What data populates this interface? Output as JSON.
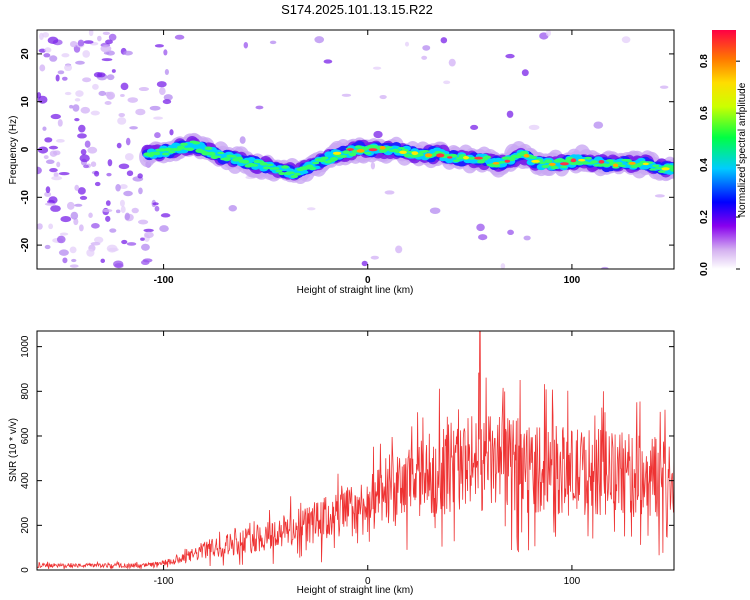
{
  "title": "S174.2025.101.13.15.R22",
  "chart_data": [
    {
      "type": "heatmap",
      "xlabel": "Height of straight line (km)",
      "ylabel": "Frequency (Hz)",
      "xlim": [
        -162,
        150
      ],
      "ylim": [
        -25,
        25
      ],
      "x_ticks": [
        -100,
        0,
        100
      ],
      "y_ticks": [
        -20,
        -10,
        0,
        10,
        20
      ],
      "colorbar": {
        "label": "Normalized spectral amplitude",
        "range": [
          0,
          0.92
        ],
        "ticks": [
          0.0,
          0.2,
          0.4,
          0.6,
          0.8
        ]
      },
      "ridge": {
        "x": [
          -105,
          -95,
          -85,
          -75,
          -65,
          -55,
          -45,
          -35,
          -25,
          -15,
          -5,
          5,
          15,
          25,
          35,
          45,
          55,
          65,
          75,
          85,
          95,
          105,
          115,
          125,
          135,
          145
        ],
        "frequency": [
          -1,
          0,
          1,
          -1,
          -2,
          -3,
          -4,
          -5,
          -3,
          -1,
          0,
          0,
          0,
          -1,
          -1,
          -2,
          -2,
          -3,
          -1,
          -3,
          -3,
          -2,
          -3,
          -3,
          -3,
          -4
        ]
      },
      "grid": false,
      "legend": "none"
    },
    {
      "type": "line",
      "xlabel": "Height of straight line (km)",
      "ylabel": "SNR (10 * v/v)",
      "xlim": [
        -162,
        150
      ],
      "ylim": [
        0,
        1070
      ],
      "x_ticks": [
        -100,
        0,
        100
      ],
      "y_ticks": [
        0,
        200,
        400,
        600,
        800,
        1000
      ],
      "color": "#ee3333",
      "envelope": {
        "x": [
          -162,
          -110,
          -100,
          -90,
          -80,
          -70,
          -60,
          -50,
          -40,
          -30,
          -20,
          -10,
          0,
          10,
          20,
          30,
          40,
          50,
          60,
          70,
          80,
          90,
          100,
          110,
          120,
          130,
          140,
          150
        ],
        "snr_mean": [
          20,
          20,
          30,
          50,
          90,
          110,
          130,
          150,
          175,
          200,
          230,
          260,
          290,
          330,
          380,
          420,
          460,
          480,
          480,
          470,
          460,
          450,
          440,
          440,
          430,
          420,
          420,
          410
        ]
      },
      "peak": {
        "x": 55,
        "snr": 1070
      },
      "grid": false,
      "legend": "none"
    }
  ]
}
